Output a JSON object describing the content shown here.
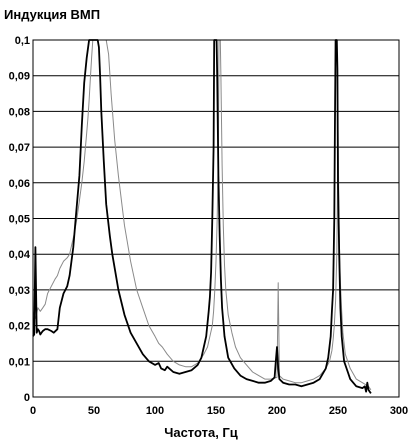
{
  "chart_data": {
    "type": "line",
    "title": "Индукция ВМП",
    "xlabel": "Частота, Гц",
    "ylabel": "",
    "xlim": [
      0,
      300
    ],
    "ylim": [
      0,
      0.1
    ],
    "x_ticks": [
      0,
      50,
      100,
      150,
      200,
      250,
      300
    ],
    "y_ticks": [
      0,
      0.01,
      0.02,
      0.03,
      0.04,
      0.05,
      0.06,
      0.07,
      0.08,
      0.09,
      0.1
    ],
    "x_tick_labels": [
      "0",
      "50",
      "100",
      "150",
      "200",
      "250",
      "300"
    ],
    "y_tick_labels": [
      "0",
      "0,01",
      "0,02",
      "0,03",
      "0,04",
      "0,05",
      "0,06",
      "0,07",
      "0,08",
      "0,09",
      "0,1"
    ],
    "grid": "horizontal",
    "legend": "none",
    "series": [
      {
        "color": "#000000",
        "style": "thick",
        "x": [
          0,
          1,
          2,
          3,
          4,
          5,
          6,
          7,
          8,
          10,
          12,
          15,
          17,
          20,
          22,
          25,
          28,
          30,
          33,
          35,
          38,
          40,
          42,
          44,
          46,
          47,
          48,
          49,
          50,
          51,
          52,
          53,
          54,
          55,
          56,
          58,
          60,
          63,
          65,
          70,
          75,
          80,
          85,
          90,
          95,
          100,
          103,
          105,
          108,
          110,
          115,
          120,
          125,
          130,
          135,
          138,
          140,
          142,
          144,
          145,
          146,
          147,
          148,
          148.5,
          149,
          149.5,
          150,
          150.5,
          151,
          152,
          153,
          154,
          155,
          157,
          160,
          165,
          170,
          175,
          180,
          185,
          190,
          195,
          198,
          199,
          200,
          201,
          202,
          205,
          210,
          215,
          220,
          225,
          230,
          235,
          240,
          242,
          244,
          245,
          246,
          247,
          247.5,
          248,
          248.5,
          249,
          249.5,
          250,
          251,
          252,
          253,
          255,
          258,
          260,
          265,
          270,
          272,
          273,
          274,
          275,
          277
        ],
        "y": [
          0.017,
          0.0175,
          0.042,
          0.018,
          0.019,
          0.0185,
          0.0175,
          0.018,
          0.0185,
          0.019,
          0.019,
          0.0185,
          0.018,
          0.019,
          0.025,
          0.029,
          0.031,
          0.034,
          0.042,
          0.05,
          0.062,
          0.076,
          0.088,
          0.095,
          0.1,
          0.1,
          0.1,
          0.1,
          0.1,
          0.1,
          0.1,
          0.1,
          0.098,
          0.09,
          0.08,
          0.066,
          0.054,
          0.045,
          0.04,
          0.03,
          0.023,
          0.018,
          0.015,
          0.012,
          0.01,
          0.009,
          0.0095,
          0.008,
          0.0075,
          0.0085,
          0.007,
          0.0065,
          0.007,
          0.0075,
          0.009,
          0.011,
          0.014,
          0.017,
          0.024,
          0.028,
          0.035,
          0.05,
          0.07,
          0.1,
          0.1,
          0.1,
          0.1,
          0.1,
          0.09,
          0.062,
          0.045,
          0.033,
          0.025,
          0.017,
          0.011,
          0.008,
          0.006,
          0.005,
          0.0045,
          0.004,
          0.004,
          0.0045,
          0.0055,
          0.01,
          0.014,
          0.008,
          0.005,
          0.004,
          0.0035,
          0.0035,
          0.003,
          0.0035,
          0.004,
          0.005,
          0.008,
          0.011,
          0.017,
          0.024,
          0.03,
          0.05,
          0.075,
          0.1,
          0.1,
          0.1,
          0.092,
          0.06,
          0.04,
          0.025,
          0.017,
          0.01,
          0.007,
          0.005,
          0.003,
          0.0025,
          0.003,
          0.0015,
          0.004,
          0.002,
          0.001
        ]
      },
      {
        "color": "#8a8a8a",
        "style": "thin",
        "x": [
          0,
          2,
          4,
          6,
          8,
          10,
          12,
          15,
          18,
          20,
          22,
          25,
          28,
          30,
          32,
          34,
          36,
          38,
          40,
          42,
          44,
          45,
          46,
          47,
          48,
          49,
          50,
          51,
          52,
          53,
          54,
          55,
          56,
          57,
          58,
          59,
          60,
          62,
          64,
          67,
          70,
          75,
          80,
          85,
          90,
          95,
          100,
          103,
          106,
          110,
          115,
          120,
          125,
          130,
          135,
          140,
          143,
          145,
          147,
          148,
          149,
          150,
          151,
          152,
          152.5,
          153,
          153.5,
          154,
          155,
          156,
          157,
          158,
          160,
          163,
          166,
          170,
          175,
          180,
          185,
          190,
          195,
          200,
          201,
          202,
          205,
          210,
          215,
          220,
          225,
          230,
          235,
          240,
          243,
          245,
          246,
          247,
          248,
          249,
          249.5,
          250,
          250.5,
          251,
          252,
          253,
          254,
          256,
          260,
          265,
          270,
          275,
          277
        ],
        "y": [
          0.024,
          0.022,
          0.025,
          0.024,
          0.025,
          0.026,
          0.029,
          0.031,
          0.033,
          0.034,
          0.036,
          0.038,
          0.039,
          0.04,
          0.043,
          0.046,
          0.05,
          0.055,
          0.06,
          0.066,
          0.074,
          0.078,
          0.083,
          0.089,
          0.095,
          0.1,
          0.1,
          0.1,
          0.1,
          0.1,
          0.1,
          0.1,
          0.1,
          0.1,
          0.1,
          0.1,
          0.1,
          0.096,
          0.085,
          0.072,
          0.062,
          0.048,
          0.038,
          0.03,
          0.025,
          0.02,
          0.017,
          0.015,
          0.014,
          0.012,
          0.01,
          0.009,
          0.0085,
          0.0085,
          0.0095,
          0.012,
          0.014,
          0.017,
          0.02,
          0.024,
          0.03,
          0.038,
          0.05,
          0.07,
          0.1,
          0.1,
          0.1,
          0.09,
          0.065,
          0.048,
          0.037,
          0.03,
          0.023,
          0.018,
          0.014,
          0.011,
          0.009,
          0.007,
          0.006,
          0.005,
          0.005,
          0.0055,
          0.032,
          0.006,
          0.005,
          0.0045,
          0.004,
          0.004,
          0.0045,
          0.005,
          0.006,
          0.008,
          0.01,
          0.013,
          0.016,
          0.02,
          0.027,
          0.04,
          0.055,
          0.075,
          0.06,
          0.045,
          0.032,
          0.024,
          0.018,
          0.012,
          0.008,
          0.005,
          0.004,
          0.003,
          0.002
        ]
      }
    ]
  }
}
